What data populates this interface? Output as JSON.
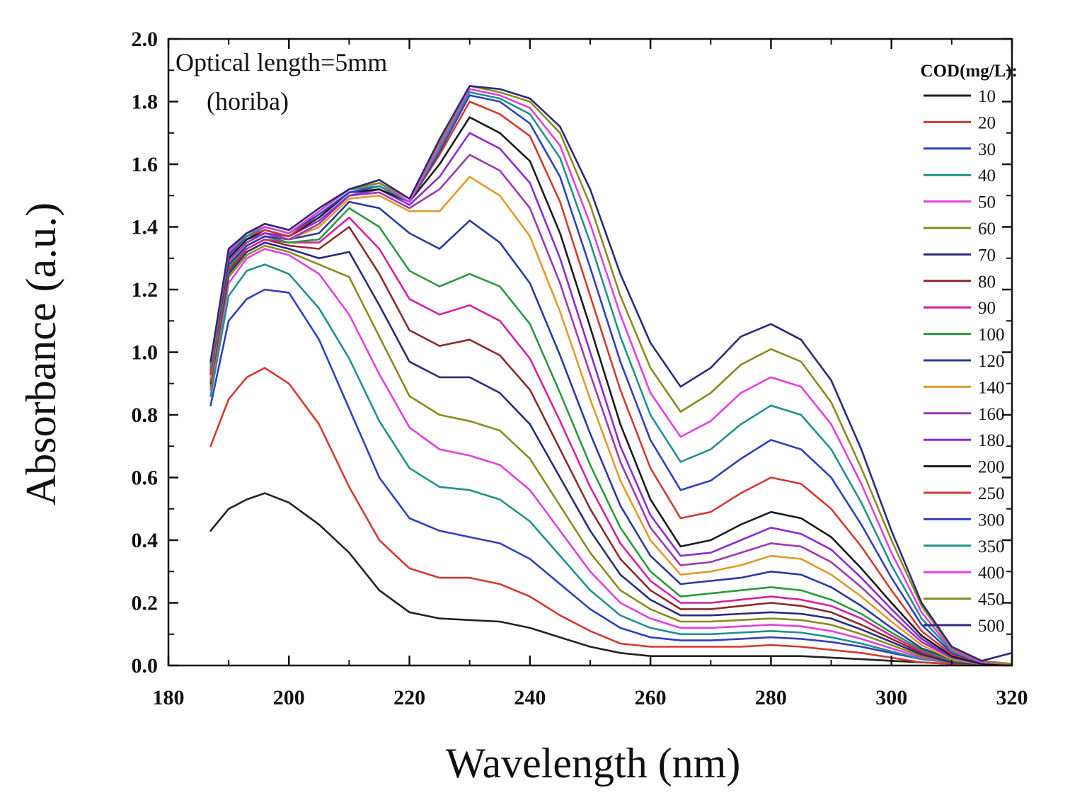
{
  "chart_data": {
    "type": "line",
    "xlabel": "Wavelength (nm)",
    "ylabel": "Absorbance (a.u.)",
    "xlim": [
      180,
      320
    ],
    "ylim": [
      0.0,
      2.0
    ],
    "xticks": [
      "180",
      "200",
      "220",
      "240",
      "260",
      "280",
      "300",
      "320"
    ],
    "yticks": [
      "0.0",
      "0.2",
      "0.4",
      "0.6",
      "0.8",
      "1.0",
      "1.2",
      "1.4",
      "1.6",
      "1.8",
      "2.0"
    ],
    "annotation_lines": [
      "Optical length=5mm",
      "(horiba)"
    ],
    "legend_title": "COD(mg/L):",
    "legend_position": "right",
    "grid": false,
    "x": [
      187,
      190,
      193,
      196,
      200,
      205,
      210,
      215,
      220,
      225,
      230,
      235,
      240,
      245,
      250,
      255,
      260,
      265,
      270,
      275,
      280,
      285,
      290,
      295,
      300,
      305,
      310,
      315,
      320
    ],
    "series": [
      {
        "name": "10",
        "color": "#222222",
        "values": [
          0.43,
          0.5,
          0.53,
          0.55,
          0.52,
          0.45,
          0.36,
          0.24,
          0.17,
          0.15,
          0.145,
          0.14,
          0.12,
          0.09,
          0.06,
          0.04,
          0.03,
          0.03,
          0.03,
          0.03,
          0.03,
          0.03,
          0.025,
          0.02,
          0.015,
          0.01,
          0.005,
          0.005,
          0.005
        ]
      },
      {
        "name": "20",
        "color": "#d23a2f",
        "values": [
          0.7,
          0.85,
          0.92,
          0.95,
          0.9,
          0.77,
          0.57,
          0.4,
          0.31,
          0.28,
          0.28,
          0.26,
          0.22,
          0.16,
          0.11,
          0.07,
          0.06,
          0.06,
          0.06,
          0.06,
          0.065,
          0.06,
          0.05,
          0.04,
          0.025,
          0.01,
          0.005,
          0.005,
          0.005
        ]
      },
      {
        "name": "30",
        "color": "#2f3fbf",
        "values": [
          0.83,
          1.1,
          1.17,
          1.2,
          1.19,
          1.04,
          0.82,
          0.6,
          0.47,
          0.43,
          0.41,
          0.39,
          0.34,
          0.26,
          0.18,
          0.12,
          0.09,
          0.08,
          0.08,
          0.085,
          0.09,
          0.085,
          0.075,
          0.06,
          0.04,
          0.02,
          0.01,
          0.005,
          0.005
        ]
      },
      {
        "name": "40",
        "color": "#20908c",
        "values": [
          0.86,
          1.18,
          1.26,
          1.28,
          1.25,
          1.14,
          0.98,
          0.78,
          0.63,
          0.57,
          0.56,
          0.53,
          0.46,
          0.35,
          0.24,
          0.16,
          0.12,
          0.1,
          0.1,
          0.105,
          0.11,
          0.105,
          0.09,
          0.07,
          0.045,
          0.02,
          0.01,
          0.005,
          0.005
        ]
      },
      {
        "name": "50",
        "color": "#e040e0",
        "values": [
          0.88,
          1.22,
          1.3,
          1.33,
          1.31,
          1.25,
          1.12,
          0.93,
          0.76,
          0.69,
          0.67,
          0.64,
          0.56,
          0.43,
          0.3,
          0.2,
          0.15,
          0.12,
          0.12,
          0.125,
          0.13,
          0.125,
          0.11,
          0.085,
          0.055,
          0.025,
          0.01,
          0.005,
          0.005
        ]
      },
      {
        "name": "60",
        "color": "#8a8a1f",
        "values": [
          0.89,
          1.24,
          1.31,
          1.34,
          1.32,
          1.28,
          1.24,
          1.05,
          0.86,
          0.8,
          0.78,
          0.75,
          0.66,
          0.51,
          0.36,
          0.24,
          0.18,
          0.14,
          0.14,
          0.145,
          0.15,
          0.145,
          0.13,
          0.1,
          0.065,
          0.03,
          0.01,
          0.005,
          0.005
        ]
      },
      {
        "name": "70",
        "color": "#2a2a7a",
        "values": [
          0.9,
          1.25,
          1.32,
          1.35,
          1.33,
          1.3,
          1.32,
          1.15,
          0.97,
          0.92,
          0.92,
          0.87,
          0.77,
          0.6,
          0.43,
          0.29,
          0.21,
          0.16,
          0.16,
          0.165,
          0.17,
          0.165,
          0.15,
          0.115,
          0.075,
          0.035,
          0.01,
          0.005,
          0.005
        ]
      },
      {
        "name": "80",
        "color": "#8a2a2a",
        "values": [
          0.9,
          1.26,
          1.33,
          1.36,
          1.34,
          1.33,
          1.4,
          1.25,
          1.07,
          1.02,
          1.04,
          0.99,
          0.88,
          0.69,
          0.5,
          0.34,
          0.24,
          0.18,
          0.18,
          0.19,
          0.2,
          0.19,
          0.17,
          0.13,
          0.085,
          0.04,
          0.015,
          0.005,
          0.005
        ]
      },
      {
        "name": "90",
        "color": "#d81fa0",
        "values": [
          0.91,
          1.27,
          1.33,
          1.36,
          1.35,
          1.35,
          1.43,
          1.33,
          1.17,
          1.12,
          1.15,
          1.1,
          0.98,
          0.78,
          0.57,
          0.39,
          0.27,
          0.2,
          0.2,
          0.21,
          0.22,
          0.21,
          0.19,
          0.15,
          0.095,
          0.045,
          0.015,
          0.005,
          0.005
        ]
      },
      {
        "name": "100",
        "color": "#2a9a3a",
        "values": [
          0.91,
          1.27,
          1.34,
          1.37,
          1.35,
          1.36,
          1.46,
          1.4,
          1.26,
          1.21,
          1.25,
          1.21,
          1.09,
          0.87,
          0.64,
          0.44,
          0.3,
          0.22,
          0.23,
          0.24,
          0.25,
          0.24,
          0.21,
          0.165,
          0.105,
          0.05,
          0.015,
          0.005,
          0.005
        ]
      },
      {
        "name": "120",
        "color": "#2a3aa0",
        "values": [
          0.92,
          1.28,
          1.34,
          1.37,
          1.36,
          1.38,
          1.48,
          1.46,
          1.38,
          1.33,
          1.42,
          1.35,
          1.22,
          0.99,
          0.74,
          0.51,
          0.35,
          0.26,
          0.27,
          0.28,
          0.3,
          0.29,
          0.25,
          0.19,
          0.12,
          0.055,
          0.02,
          0.005,
          0.005
        ]
      },
      {
        "name": "140",
        "color": "#e09a2a",
        "values": [
          0.92,
          1.29,
          1.35,
          1.38,
          1.36,
          1.4,
          1.49,
          1.5,
          1.45,
          1.45,
          1.56,
          1.5,
          1.37,
          1.13,
          0.85,
          0.59,
          0.4,
          0.29,
          0.3,
          0.32,
          0.35,
          0.34,
          0.29,
          0.22,
          0.14,
          0.065,
          0.02,
          0.005,
          0.005
        ]
      },
      {
        "name": "160",
        "color": "#9a3ab0",
        "values": [
          0.93,
          1.29,
          1.35,
          1.38,
          1.36,
          1.41,
          1.5,
          1.51,
          1.46,
          1.52,
          1.63,
          1.58,
          1.46,
          1.22,
          0.93,
          0.65,
          0.44,
          0.32,
          0.33,
          0.36,
          0.39,
          0.38,
          0.33,
          0.25,
          0.16,
          0.075,
          0.025,
          0.005,
          0.005
        ]
      },
      {
        "name": "180",
        "color": "#8a2ad8",
        "values": [
          0.93,
          1.3,
          1.36,
          1.38,
          1.37,
          1.42,
          1.5,
          1.52,
          1.47,
          1.56,
          1.7,
          1.65,
          1.54,
          1.3,
          1.0,
          0.7,
          0.48,
          0.35,
          0.36,
          0.4,
          0.44,
          0.42,
          0.37,
          0.28,
          0.18,
          0.085,
          0.025,
          0.005,
          0.005
        ]
      },
      {
        "name": "200",
        "color": "#1a1a1a",
        "values": [
          0.94,
          1.3,
          1.36,
          1.39,
          1.37,
          1.43,
          1.51,
          1.52,
          1.48,
          1.6,
          1.75,
          1.7,
          1.61,
          1.38,
          1.08,
          0.77,
          0.53,
          0.38,
          0.4,
          0.45,
          0.49,
          0.47,
          0.41,
          0.31,
          0.2,
          0.095,
          0.03,
          0.005,
          0.005
        ]
      },
      {
        "name": "250",
        "color": "#d23a2f",
        "values": [
          0.94,
          1.31,
          1.37,
          1.39,
          1.37,
          1.44,
          1.51,
          1.53,
          1.48,
          1.63,
          1.8,
          1.76,
          1.69,
          1.48,
          1.18,
          0.88,
          0.63,
          0.47,
          0.49,
          0.55,
          0.6,
          0.58,
          0.5,
          0.38,
          0.24,
          0.11,
          0.035,
          0.01,
          0.005
        ]
      },
      {
        "name": "300",
        "color": "#2f3fbf",
        "values": [
          0.95,
          1.31,
          1.37,
          1.4,
          1.38,
          1.44,
          1.51,
          1.53,
          1.48,
          1.64,
          1.82,
          1.8,
          1.73,
          1.56,
          1.27,
          0.97,
          0.72,
          0.56,
          0.59,
          0.66,
          0.72,
          0.69,
          0.6,
          0.45,
          0.28,
          0.13,
          0.04,
          0.01,
          0.005
        ]
      },
      {
        "name": "350",
        "color": "#20908c",
        "values": [
          0.95,
          1.32,
          1.37,
          1.4,
          1.38,
          1.45,
          1.52,
          1.53,
          1.48,
          1.65,
          1.83,
          1.81,
          1.76,
          1.62,
          1.35,
          1.05,
          0.8,
          0.65,
          0.69,
          0.77,
          0.83,
          0.8,
          0.69,
          0.52,
          0.32,
          0.15,
          0.045,
          0.01,
          0.005
        ]
      },
      {
        "name": "400",
        "color": "#e040e0",
        "values": [
          0.96,
          1.32,
          1.38,
          1.4,
          1.38,
          1.45,
          1.52,
          1.54,
          1.48,
          1.66,
          1.84,
          1.82,
          1.78,
          1.66,
          1.41,
          1.12,
          0.87,
          0.73,
          0.78,
          0.87,
          0.92,
          0.89,
          0.77,
          0.58,
          0.36,
          0.17,
          0.05,
          0.01,
          0.005
        ]
      },
      {
        "name": "450",
        "color": "#8a8a1f",
        "values": [
          0.96,
          1.33,
          1.38,
          1.41,
          1.39,
          1.46,
          1.52,
          1.54,
          1.49,
          1.67,
          1.85,
          1.83,
          1.8,
          1.7,
          1.47,
          1.18,
          0.95,
          0.81,
          0.87,
          0.96,
          1.01,
          0.97,
          0.84,
          0.63,
          0.4,
          0.19,
          0.055,
          0.015,
          0.005
        ]
      },
      {
        "name": "500",
        "color": "#2a2a7a",
        "values": [
          0.97,
          1.33,
          1.38,
          1.41,
          1.39,
          1.46,
          1.52,
          1.55,
          1.49,
          1.68,
          1.85,
          1.84,
          1.81,
          1.72,
          1.52,
          1.25,
          1.03,
          0.89,
          0.95,
          1.05,
          1.09,
          1.04,
          0.91,
          0.69,
          0.43,
          0.2,
          0.06,
          0.015,
          0.04
        ]
      }
    ]
  }
}
